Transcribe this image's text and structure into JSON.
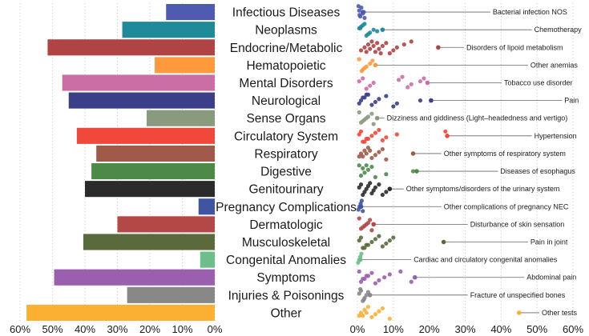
{
  "chart_data": [
    {
      "type": "bar",
      "orientation": "horizontal-leftward",
      "title": "",
      "xlabel": "",
      "ylabel": "",
      "xlim": [
        0,
        60
      ],
      "tick_labels": [
        "60%",
        "50%",
        "40%",
        "30%",
        "20%",
        "10%",
        "0%"
      ],
      "categories": [
        "Infectious Diseases",
        "Neoplasms",
        "Endocrine/Metabolic",
        "Hematopoietic",
        "Mental Disorders",
        "Neurological",
        "Sense Organs",
        "Circulatory System",
        "Respiratory",
        "Digestive",
        "Genitourinary",
        "Pregnancy Complications",
        "Dermatologic",
        "Musculoskeletal",
        "Congenital Anomalies",
        "Symptoms",
        "Injuries & Poisonings",
        "Other"
      ],
      "values": [
        15,
        28.5,
        51.5,
        18.5,
        47,
        45,
        21,
        42.5,
        36.5,
        38,
        40,
        5,
        30,
        40.5,
        4.5,
        49.5,
        27,
        58
      ],
      "colors": [
        "#4e5bb0",
        "#1f8a99",
        "#b04444",
        "#ff9a3c",
        "#cc6ea6",
        "#3b3f88",
        "#8a9a7e",
        "#f0483a",
        "#a05a4a",
        "#4d8a48",
        "#2b2b2b",
        "#4055a0",
        "#b44846",
        "#5a6a3c",
        "#6cbf8a",
        "#9b5fb0",
        "#888888",
        "#fbb034"
      ]
    },
    {
      "type": "scatter",
      "title": "",
      "xlabel": "",
      "ylabel": "",
      "xlim": [
        0,
        60
      ],
      "tick_labels": [
        "0%",
        "10%",
        "20%",
        "30%",
        "40%",
        "50%",
        "60%"
      ],
      "series": [
        {
          "category": "Infectious Diseases",
          "values": [
            0.3,
            0.8,
            1.5,
            0.5,
            1.1,
            2.0,
            0.6,
            1.8
          ],
          "highlight": 1.5,
          "annotation": "Bacterial infection NOS"
        },
        {
          "category": "Neoplasms",
          "values": [
            0.5,
            1.5,
            2.5,
            3.5,
            4.5,
            1.0,
            2.0,
            3.0,
            5.5,
            0.8
          ],
          "highlight": 7.0,
          "annotation": "Chemotherapy"
        },
        {
          "category": "Endocrine/Metabolic",
          "values": [
            1,
            2,
            3,
            4,
            5,
            6,
            7,
            8,
            9,
            10,
            11,
            13,
            15,
            2.5,
            3.5,
            4.5,
            5.5,
            6.5
          ],
          "highlight": 22.5,
          "annotation": "Disorders of lipoid metabolism"
        },
        {
          "category": "Hematopoietic",
          "values": [
            0.5,
            1.5,
            2.5,
            3.5,
            4.2,
            1.2,
            2.0
          ],
          "highlight": 5.0,
          "annotation": "Other anemias"
        },
        {
          "category": "Mental Disorders",
          "values": [
            0.5,
            1.5,
            2.5,
            3.5,
            4.5,
            11.5,
            12.5,
            14,
            15,
            17.5,
            18.5
          ],
          "highlight": 19.5,
          "annotation": "Tobacco use disorder"
        },
        {
          "category": "Neurological",
          "values": [
            0.5,
            1.0,
            2.0,
            3.0,
            4.0,
            5.0,
            6.0,
            8.0,
            10.0,
            11.0,
            17.5,
            1.5,
            2.5
          ],
          "highlight": 20.5,
          "annotation": "Pain"
        },
        {
          "category": "Sense Organs",
          "values": [
            0.5,
            1.0,
            2.0,
            3.0,
            4.0,
            4.5,
            1.5,
            2.5
          ],
          "highlight": 5.5,
          "annotation": "Dizziness and giddiness (Light–headedness and vertigo)"
        },
        {
          "category": "Circulatory System",
          "values": [
            0.5,
            1.0,
            2.0,
            3.0,
            4.0,
            5.0,
            6.0,
            7.0,
            8.0,
            11.0,
            24.5,
            1.5,
            2.5
          ],
          "highlight": 25.0,
          "annotation": "Hypertension"
        },
        {
          "category": "Respiratory",
          "values": [
            0.5,
            1.0,
            2.0,
            3.0,
            4.0,
            5.0,
            6.0,
            7.0,
            8.0,
            1.5,
            2.5,
            3.5
          ],
          "highlight": 15.5,
          "annotation": "Other symptoms of respiratory system"
        },
        {
          "category": "Digestive",
          "values": [
            0.5,
            1.0,
            2.0,
            3.0,
            4.0,
            5.0,
            8.0,
            15.5,
            1.5,
            2.5
          ],
          "highlight": 16.5,
          "annotation": "Diseases of esophagus"
        },
        {
          "category": "Genitourinary",
          "values": [
            0.5,
            1.0,
            1.5,
            2.0,
            2.5,
            3.0,
            3.5,
            4.0,
            4.5,
            5.0,
            6.0,
            7.0,
            8.0
          ],
          "highlight": 9.0,
          "annotation": "Other symptoms/disorders of the urinary system"
        },
        {
          "category": "Pregnancy Complications",
          "values": [
            0.3,
            0.6,
            0.9,
            1.2,
            1.5
          ],
          "highlight": 1.0,
          "annotation": "Other complications of pregnancy NEC"
        },
        {
          "category": "Dermatologic",
          "values": [
            0.5,
            1.0,
            2.0,
            3.0,
            3.5,
            4.0,
            1.5,
            2.5
          ],
          "highlight": 4.5,
          "annotation": "Disturbance of skin sensation"
        },
        {
          "category": "Musculoskeletal",
          "values": [
            0.5,
            1.0,
            2.0,
            3.0,
            4.0,
            5.0,
            6.0,
            7.0,
            8.0,
            9.0,
            10.0,
            1.5,
            2.5
          ],
          "highlight": 24.0,
          "annotation": "Pain in joint"
        },
        {
          "category": "Congenital Anomalies",
          "values": [
            0.2,
            0.5,
            0.8,
            1.1
          ],
          "highlight": 0.8,
          "annotation": "Cardiac and circulatory congenital anomalies"
        },
        {
          "category": "Symptoms",
          "values": [
            0.5,
            1.0,
            2.0,
            3.0,
            4.0,
            5.0,
            6.0,
            7.5,
            9.0,
            12.0,
            15.0,
            1.5,
            2.5
          ],
          "highlight": 16.0,
          "annotation": "Abdominal pain"
        },
        {
          "category": "Injuries & Poisonings",
          "values": [
            0.5,
            1.0,
            1.5,
            2.0,
            2.5,
            3.0,
            0.8,
            1.8
          ],
          "highlight": 3.5,
          "annotation": "Fracture of unspecified bones"
        },
        {
          "category": "Other",
          "values": [
            0.5,
            1.0,
            2.0,
            3.0,
            4.0,
            5.0,
            6.0,
            7.0,
            9.0,
            1.5,
            2.5
          ],
          "highlight": 45.0,
          "annotation": "Other tests"
        }
      ]
    }
  ]
}
